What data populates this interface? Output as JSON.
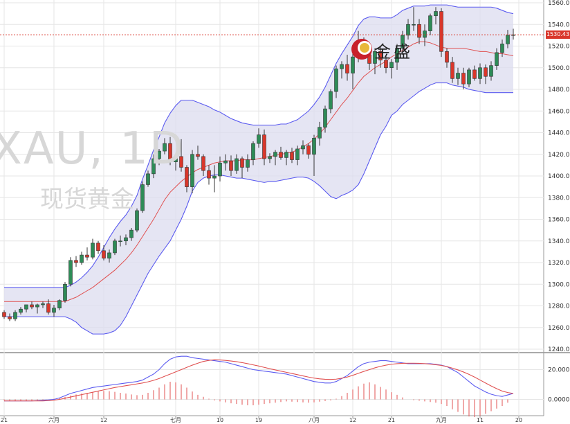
{
  "watermark": {
    "symbol": "XAU, 1D",
    "name": "现货黄金"
  },
  "logo": {
    "text": "金盛"
  },
  "last_price_label": "1530.43",
  "colors": {
    "up": "#2e8b57",
    "down": "#d9372b",
    "band_fill": "#dcdcef",
    "band_line": "#5a5af0",
    "middle_line": "#e05050",
    "price_line": "#d9372b",
    "grid": "#e6e6e6",
    "axis_text": "#333333",
    "hist": "#e05050",
    "macd_line": "#5a5af0",
    "signal_line": "#e05050"
  },
  "chart_data": [
    {
      "type": "candlestick",
      "indicator": "Bollinger Bands",
      "x_tick_labels": [
        "21",
        "六月",
        "12",
        "七月",
        "10",
        "19",
        "八月",
        "12",
        "21",
        "九月",
        "11",
        "20"
      ],
      "y_tick_labels": [
        "1560.00",
        "1540.00",
        "1520.00",
        "1500.00",
        "1480.00",
        "1460.00",
        "1440.00",
        "1420.00",
        "1400.00",
        "1380.00",
        "1360.00",
        "1340.00",
        "1320.00",
        "1300.00",
        "1280.00",
        "1260.00",
        "1240.00"
      ],
      "ylim": [
        1240,
        1560
      ],
      "last_price": 1530.43,
      "candles": [
        [
          1274,
          1276,
          1268,
          1270
        ],
        [
          1270,
          1273,
          1266,
          1268
        ],
        [
          1268,
          1276,
          1266,
          1274
        ],
        [
          1274,
          1279,
          1272,
          1277
        ],
        [
          1277,
          1280,
          1274,
          1281
        ],
        [
          1281,
          1284,
          1277,
          1279
        ],
        [
          1279,
          1282,
          1273,
          1281
        ],
        [
          1281,
          1284,
          1278,
          1282
        ],
        [
          1282,
          1286,
          1272,
          1274
        ],
        [
          1274,
          1281,
          1270,
          1278
        ],
        [
          1278,
          1286,
          1276,
          1285
        ],
        [
          1285,
          1302,
          1283,
          1300
        ],
        [
          1300,
          1325,
          1298,
          1322
        ],
        [
          1322,
          1326,
          1316,
          1320
        ],
        [
          1320,
          1330,
          1318,
          1327
        ],
        [
          1327,
          1334,
          1322,
          1325
        ],
        [
          1325,
          1342,
          1323,
          1338
        ],
        [
          1338,
          1340,
          1328,
          1331
        ],
        [
          1331,
          1336,
          1322,
          1324
        ],
        [
          1324,
          1332,
          1320,
          1329
        ],
        [
          1329,
          1342,
          1327,
          1340
        ],
        [
          1340,
          1345,
          1335,
          1340
        ],
        [
          1340,
          1346,
          1336,
          1343
        ],
        [
          1343,
          1352,
          1340,
          1350
        ],
        [
          1350,
          1370,
          1348,
          1368
        ],
        [
          1368,
          1395,
          1366,
          1392
        ],
        [
          1392,
          1405,
          1390,
          1402
        ],
        [
          1402,
          1420,
          1398,
          1416
        ],
        [
          1416,
          1425,
          1410,
          1423
        ],
        [
          1423,
          1435,
          1420,
          1430
        ],
        [
          1430,
          1436,
          1410,
          1413
        ],
        [
          1413,
          1420,
          1405,
          1418
        ],
        [
          1418,
          1434,
          1404,
          1408
        ],
        [
          1408,
          1410,
          1385,
          1390
        ],
        [
          1390,
          1424,
          1384,
          1420
        ],
        [
          1420,
          1428,
          1415,
          1418
        ],
        [
          1418,
          1420,
          1400,
          1405
        ],
        [
          1405,
          1410,
          1392,
          1398
        ],
        [
          1398,
          1410,
          1385,
          1400
        ],
        [
          1400,
          1418,
          1395,
          1412
        ],
        [
          1412,
          1420,
          1405,
          1414
        ],
        [
          1414,
          1419,
          1400,
          1405
        ],
        [
          1405,
          1420,
          1402,
          1416
        ],
        [
          1416,
          1418,
          1398,
          1408
        ],
        [
          1408,
          1420,
          1404,
          1415
        ],
        [
          1415,
          1432,
          1410,
          1430
        ],
        [
          1430,
          1444,
          1426,
          1438
        ],
        [
          1438,
          1443,
          1410,
          1416
        ],
        [
          1416,
          1421,
          1412,
          1418
        ],
        [
          1418,
          1424,
          1410,
          1422
        ],
        [
          1422,
          1427,
          1415,
          1417
        ],
        [
          1417,
          1424,
          1410,
          1422
        ],
        [
          1422,
          1426,
          1412,
          1415
        ],
        [
          1415,
          1428,
          1410,
          1425
        ],
        [
          1425,
          1433,
          1420,
          1428
        ],
        [
          1428,
          1430,
          1416,
          1420
        ],
        [
          1420,
          1438,
          1400,
          1435
        ],
        [
          1435,
          1450,
          1428,
          1445
        ],
        [
          1445,
          1465,
          1440,
          1462
        ],
        [
          1462,
          1480,
          1458,
          1478
        ],
        [
          1478,
          1502,
          1472,
          1499
        ],
        [
          1499,
          1506,
          1490,
          1503
        ],
        [
          1503,
          1512,
          1488,
          1495
        ],
        [
          1495,
          1515,
          1480,
          1510
        ],
        [
          1510,
          1534,
          1505,
          1525
        ],
        [
          1525,
          1528,
          1508,
          1512
        ],
        [
          1512,
          1522,
          1498,
          1504
        ],
        [
          1504,
          1518,
          1494,
          1515
        ],
        [
          1515,
          1520,
          1500,
          1507
        ],
        [
          1507,
          1512,
          1495,
          1500
        ],
        [
          1500,
          1508,
          1490,
          1505
        ],
        [
          1505,
          1522,
          1498,
          1518
        ],
        [
          1518,
          1534,
          1512,
          1530
        ],
        [
          1530,
          1545,
          1526,
          1540
        ],
        [
          1540,
          1556,
          1534,
          1540
        ],
        [
          1540,
          1545,
          1522,
          1528
        ],
        [
          1528,
          1540,
          1520,
          1534
        ],
        [
          1534,
          1550,
          1530,
          1548
        ],
        [
          1548,
          1556,
          1540,
          1552
        ],
        [
          1552,
          1555,
          1510,
          1515
        ],
        [
          1515,
          1518,
          1500,
          1505
        ],
        [
          1505,
          1510,
          1486,
          1490
        ],
        [
          1490,
          1500,
          1484,
          1495
        ],
        [
          1495,
          1500,
          1480,
          1485
        ],
        [
          1485,
          1500,
          1482,
          1498
        ],
        [
          1498,
          1502,
          1488,
          1490
        ],
        [
          1490,
          1504,
          1485,
          1500
        ],
        [
          1500,
          1503,
          1485,
          1492
        ],
        [
          1492,
          1506,
          1488,
          1502
        ],
        [
          1502,
          1518,
          1498,
          1514
        ],
        [
          1514,
          1526,
          1510,
          1522
        ],
        [
          1522,
          1535,
          1518,
          1530
        ],
        [
          1530,
          1536,
          1526,
          1530.43
        ]
      ],
      "bands": {
        "upper": [
          1297,
          1297,
          1297,
          1297,
          1297,
          1297,
          1297,
          1297,
          1297,
          1297,
          1297,
          1297,
          1299,
          1302,
          1306,
          1311,
          1317,
          1325,
          1334,
          1343,
          1351,
          1358,
          1364,
          1372,
          1382,
          1397,
          1410,
          1424,
          1436,
          1449,
          1458,
          1465,
          1470,
          1470,
          1470,
          1468,
          1466,
          1464,
          1461,
          1459,
          1456,
          1453,
          1451,
          1449,
          1448,
          1447,
          1447,
          1447,
          1447,
          1447,
          1448,
          1448,
          1450,
          1452,
          1456,
          1460,
          1466,
          1473,
          1482,
          1493,
          1504,
          1513,
          1521,
          1529,
          1539,
          1545,
          1547,
          1547,
          1546,
          1546,
          1546,
          1549,
          1553,
          1555,
          1557,
          1557,
          1557,
          1558,
          1558,
          1558,
          1558,
          1557,
          1556,
          1556,
          1556,
          1556,
          1556,
          1556,
          1556,
          1555,
          1553,
          1551,
          1550
        ],
        "middle": [
          1284,
          1284,
          1284,
          1284,
          1284,
          1284,
          1284,
          1284,
          1284,
          1284,
          1284,
          1284,
          1286,
          1288,
          1291,
          1294,
          1297,
          1301,
          1305,
          1309,
          1313,
          1318,
          1323,
          1329,
          1336,
          1344,
          1352,
          1360,
          1369,
          1378,
          1385,
          1390,
          1395,
          1399,
          1403,
          1406,
          1408,
          1410,
          1412,
          1413,
          1414,
          1414,
          1414,
          1415,
          1415,
          1415,
          1416,
          1417,
          1418,
          1419,
          1420,
          1421,
          1422,
          1424,
          1427,
          1430,
          1434,
          1439,
          1445,
          1452,
          1459,
          1466,
          1472,
          1479,
          1486,
          1492,
          1496,
          1500,
          1503,
          1506,
          1510,
          1513,
          1516,
          1519,
          1522,
          1524,
          1524,
          1523,
          1521,
          1519,
          1518,
          1518,
          1518,
          1518,
          1517,
          1516,
          1515,
          1515,
          1514,
          1513,
          1513,
          1512,
          1511
        ],
        "lower": [
          1270,
          1270,
          1270,
          1270,
          1270,
          1270,
          1270,
          1270,
          1270,
          1270,
          1270,
          1270,
          1268,
          1265,
          1260,
          1257,
          1254,
          1254,
          1254,
          1255,
          1257,
          1262,
          1270,
          1280,
          1290,
          1300,
          1310,
          1318,
          1326,
          1333,
          1340,
          1350,
          1360,
          1372,
          1386,
          1394,
          1398,
          1400,
          1401,
          1401,
          1400,
          1399,
          1398,
          1398,
          1397,
          1396,
          1395,
          1394,
          1395,
          1395,
          1396,
          1397,
          1398,
          1399,
          1399,
          1398,
          1395,
          1391,
          1386,
          1381,
          1379,
          1382,
          1384,
          1387,
          1392,
          1402,
          1414,
          1426,
          1438,
          1446,
          1456,
          1460,
          1466,
          1470,
          1474,
          1478,
          1481,
          1484,
          1486,
          1486,
          1486,
          1484,
          1483,
          1482,
          1480,
          1479,
          1478,
          1477,
          1477,
          1477,
          1477,
          1477,
          1477
        ]
      }
    },
    {
      "type": "macd",
      "y_tick_labels": [
        "20.0000",
        "0.0000"
      ],
      "ylim": [
        -10,
        30
      ],
      "macd": [
        -1,
        -1,
        -1,
        -1,
        -1,
        -1,
        -0.8,
        -0.5,
        -0.3,
        0,
        1,
        2.5,
        4,
        5,
        6,
        7,
        8,
        8.5,
        9,
        9.5,
        10,
        10.5,
        11,
        11.5,
        12,
        13,
        15,
        17,
        20,
        24,
        27,
        28.5,
        29,
        29,
        28,
        27.5,
        27,
        26.5,
        26,
        25.5,
        25,
        24,
        23,
        22,
        21,
        20,
        19.5,
        19,
        18.5,
        18,
        17.5,
        17,
        16,
        15,
        14,
        13,
        12,
        11.5,
        11,
        11,
        12,
        14,
        16,
        19,
        22,
        24,
        25,
        25.5,
        26,
        26,
        25.5,
        25,
        24.5,
        24,
        24,
        24,
        24,
        24,
        23.5,
        23,
        22,
        20,
        18,
        15,
        12,
        9,
        7,
        5,
        3.5,
        2.5,
        2,
        3,
        4
      ],
      "signal": [
        -1,
        -1,
        -1,
        -1,
        -1,
        -1,
        -1,
        -1,
        -0.8,
        -0.5,
        0,
        0.8,
        1.6,
        2.4,
        3.2,
        4,
        4.8,
        5.6,
        6.4,
        7.2,
        8,
        8.6,
        9.2,
        9.8,
        10.4,
        11,
        11.8,
        12.8,
        14,
        15.5,
        17,
        18.5,
        20,
        21.5,
        23,
        24.3,
        25.5,
        26.2,
        26.6,
        26.5,
        26.2,
        25.8,
        25.3,
        24.7,
        24,
        23.2,
        22.4,
        21.5,
        20.6,
        19.8,
        19,
        18.2,
        17.4,
        16.6,
        15.8,
        15,
        14.3,
        13.8,
        13.5,
        13.4,
        13.6,
        14.2,
        15,
        16.2,
        17.5,
        18.8,
        20,
        21.2,
        22.2,
        23,
        23.6,
        24,
        24.2,
        24.3,
        24.3,
        24.2,
        24,
        23.7,
        23.3,
        22.8,
        22,
        21,
        19.8,
        18.4,
        16.8,
        15,
        13,
        11,
        9,
        7.2,
        5.6,
        4.6,
        4
      ],
      "histogram": [
        -0.3,
        -0.3,
        -0.4,
        -0.5,
        -0.5,
        -0.4,
        -0.3,
        -0.2,
        0,
        0.2,
        0.5,
        0.8,
        1.2,
        1.5,
        1.8,
        2,
        2.2,
        2.4,
        2.6,
        2.5,
        2.3,
        2,
        1.8,
        1.5,
        1.3,
        1.4,
        2,
        2.8,
        3.6,
        4.6,
        5.4,
        5.2,
        4.6,
        3.6,
        2.4,
        1.4,
        0.8,
        0.2,
        -0.3,
        -0.6,
        -0.9,
        -1.2,
        -1.4,
        -1.6,
        -1.8,
        -1.8,
        -1.6,
        -1.4,
        -1.2,
        -1,
        -0.8,
        -0.6,
        -0.7,
        -0.8,
        -0.9,
        -1,
        -0.9,
        -0.7,
        -0.5,
        -0.3,
        0.2,
        1,
        2,
        3,
        4,
        4.8,
        5.2,
        4.6,
        3.8,
        3,
        2.2,
        1.4,
        0.6,
        0,
        -0.2,
        -0.4,
        -0.6,
        -0.8,
        -1,
        -1.4,
        -2,
        -3,
        -3.8,
        -4.6,
        -5.2,
        -5.4,
        -5,
        -4.4,
        -3.6,
        -2.8,
        -2,
        -1,
        0
      ]
    }
  ]
}
